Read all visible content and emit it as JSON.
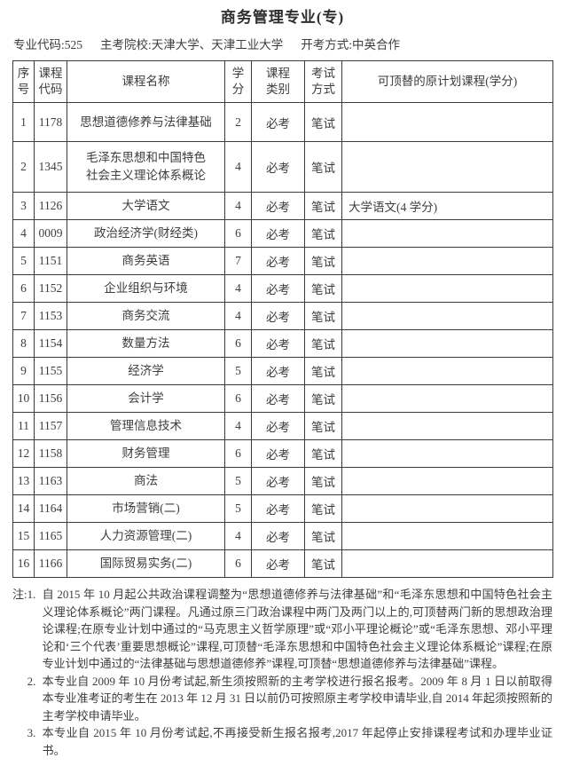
{
  "page": {
    "title": "商务管理专业(专)"
  },
  "meta": {
    "major_code": "专业代码:525",
    "host_schools": "主考院校:天津大学、天津工业大学",
    "exam_mode": "开考方式:中英合作"
  },
  "table": {
    "headers": [
      "序\n号",
      "课程\n代码",
      "课程名称",
      "学\n分",
      "课程\n类别",
      "考试\n方式",
      "可顶替的原计划课程(学分)"
    ],
    "rows": [
      {
        "seq": "1",
        "code": "1178",
        "name": "思想道德修养与法律基础",
        "credits": "2",
        "category": "必考",
        "exam": "笔试",
        "replace": ""
      },
      {
        "seq": "2",
        "code": "1345",
        "name": "毛泽东思想和中国特色\n社会主义理论体系概论",
        "credits": "4",
        "category": "必考",
        "exam": "笔试",
        "replace": ""
      },
      {
        "seq": "3",
        "code": "1126",
        "name": "大学语文",
        "credits": "4",
        "category": "必考",
        "exam": "笔试",
        "replace": "大学语文(4 学分)"
      },
      {
        "seq": "4",
        "code": "0009",
        "name": "政治经济学(财经类)",
        "credits": "6",
        "category": "必考",
        "exam": "笔试",
        "replace": ""
      },
      {
        "seq": "5",
        "code": "1151",
        "name": "商务英语",
        "credits": "7",
        "category": "必考",
        "exam": "笔试",
        "replace": ""
      },
      {
        "seq": "6",
        "code": "1152",
        "name": "企业组织与环境",
        "credits": "4",
        "category": "必考",
        "exam": "笔试",
        "replace": ""
      },
      {
        "seq": "7",
        "code": "1153",
        "name": "商务交流",
        "credits": "4",
        "category": "必考",
        "exam": "笔试",
        "replace": ""
      },
      {
        "seq": "8",
        "code": "1154",
        "name": "数量方法",
        "credits": "6",
        "category": "必考",
        "exam": "笔试",
        "replace": ""
      },
      {
        "seq": "9",
        "code": "1155",
        "name": "经济学",
        "credits": "5",
        "category": "必考",
        "exam": "笔试",
        "replace": ""
      },
      {
        "seq": "10",
        "code": "1156",
        "name": "会计学",
        "credits": "6",
        "category": "必考",
        "exam": "笔试",
        "replace": ""
      },
      {
        "seq": "11",
        "code": "1157",
        "name": "管理信息技术",
        "credits": "4",
        "category": "必考",
        "exam": "笔试",
        "replace": ""
      },
      {
        "seq": "12",
        "code": "1158",
        "name": "财务管理",
        "credits": "6",
        "category": "必考",
        "exam": "笔试",
        "replace": ""
      },
      {
        "seq": "13",
        "code": "1163",
        "name": "商法",
        "credits": "5",
        "category": "必考",
        "exam": "笔试",
        "replace": ""
      },
      {
        "seq": "14",
        "code": "1164",
        "name": "市场营销(二)",
        "credits": "5",
        "category": "必考",
        "exam": "笔试",
        "replace": ""
      },
      {
        "seq": "15",
        "code": "1165",
        "name": "人力资源管理(二)",
        "credits": "4",
        "category": "必考",
        "exam": "笔试",
        "replace": ""
      },
      {
        "seq": "16",
        "code": "1166",
        "name": "国际贸易实务(二)",
        "credits": "6",
        "category": "必考",
        "exam": "笔试",
        "replace": ""
      }
    ]
  },
  "notes": {
    "label": "注:",
    "items": [
      {
        "num": "1.",
        "text": "自 2015 年 10 月起公共政治课程调整为“思想道德修养与法律基础”和“毛泽东思想和中国特色社会主义理论体系概论”两门课程。凡通过原三门政治课程中两门及两门以上的,可顶替两门新的思想政治理论课程;在原专业计划中通过的“马克思主义哲学原理”或“邓小平理论概论”或“毛泽东思想、邓小平理论和‘三个代表’重要思想概论”课程,可顶替“毛泽东思想和中国特色社会主义理论体系概论”课程;在原专业计划中通过的“法律基础与思想道德修养”课程,可顶替“思想道德修养与法律基础”课程。"
      },
      {
        "num": "2.",
        "text": "本专业自 2009 年 10 月份考试起,新生须按照新的主考学校进行报名报考。2009 年 8 月 1 日以前取得本专业准考证的考生在 2013 年 12 月 31 日以前仍可按照原主考学校申请毕业,自 2014 年起须按照新的主考学校申请毕业。"
      },
      {
        "num": "3.",
        "text": "本专业自 2015 年 10 月份考试起,不再接受新生报名报考,2017 年起停止安排课程考试和办理毕业证书。"
      }
    ]
  }
}
